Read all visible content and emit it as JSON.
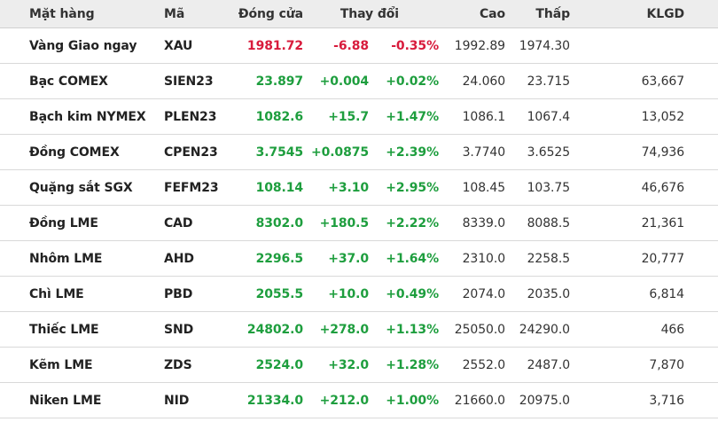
{
  "header": {
    "name": "Mặt hàng",
    "code": "Mã",
    "close": "Đóng cửa",
    "change": "Thay đổi",
    "high": "Cao",
    "low": "Thấp",
    "volume": "KLGD"
  },
  "colors": {
    "up": "#1e9e3e",
    "down": "#d81b3c",
    "header_bg": "#ededed"
  },
  "rows": [
    {
      "name": "Vàng Giao ngay",
      "code": "XAU",
      "close": "1981.72",
      "change": "-6.88",
      "pct": "-0.35%",
      "high": "1992.89",
      "low": "1974.30",
      "volume": "",
      "trend": "down"
    },
    {
      "name": "Bạc COMEX",
      "code": "SIEN23",
      "close": "23.897",
      "change": "+0.004",
      "pct": "+0.02%",
      "high": "24.060",
      "low": "23.715",
      "volume": "63,667",
      "trend": "up"
    },
    {
      "name": "Bạch kim NYMEX",
      "code": "PLEN23",
      "close": "1082.6",
      "change": "+15.7",
      "pct": "+1.47%",
      "high": "1086.1",
      "low": "1067.4",
      "volume": "13,052",
      "trend": "up"
    },
    {
      "name": "Đồng COMEX",
      "code": "CPEN23",
      "close": "3.7545",
      "change": "+0.0875",
      "pct": "+2.39%",
      "high": "3.7740",
      "low": "3.6525",
      "volume": "74,936",
      "trend": "up"
    },
    {
      "name": "Quặng sắt SGX",
      "code": "FEFM23",
      "close": "108.14",
      "change": "+3.10",
      "pct": "+2.95%",
      "high": "108.45",
      "low": "103.75",
      "volume": "46,676",
      "trend": "up"
    },
    {
      "name": "Đồng LME",
      "code": "CAD",
      "close": "8302.0",
      "change": "+180.5",
      "pct": "+2.22%",
      "high": "8339.0",
      "low": "8088.5",
      "volume": "21,361",
      "trend": "up"
    },
    {
      "name": "Nhôm LME",
      "code": "AHD",
      "close": "2296.5",
      "change": "+37.0",
      "pct": "+1.64%",
      "high": "2310.0",
      "low": "2258.5",
      "volume": "20,777",
      "trend": "up"
    },
    {
      "name": "Chì LME",
      "code": "PBD",
      "close": "2055.5",
      "change": "+10.0",
      "pct": "+0.49%",
      "high": "2074.0",
      "low": "2035.0",
      "volume": "6,814",
      "trend": "up"
    },
    {
      "name": "Thiếc LME",
      "code": "SND",
      "close": "24802.0",
      "change": "+278.0",
      "pct": "+1.13%",
      "high": "25050.0",
      "low": "24290.0",
      "volume": "466",
      "trend": "up"
    },
    {
      "name": "Kẽm LME",
      "code": "ZDS",
      "close": "2524.0",
      "change": "+32.0",
      "pct": "+1.28%",
      "high": "2552.0",
      "low": "2487.0",
      "volume": "7,870",
      "trend": "up"
    },
    {
      "name": "Niken LME",
      "code": "NID",
      "close": "21334.0",
      "change": "+212.0",
      "pct": "+1.00%",
      "high": "21660.0",
      "low": "20975.0",
      "volume": "3,716",
      "trend": "up"
    }
  ]
}
